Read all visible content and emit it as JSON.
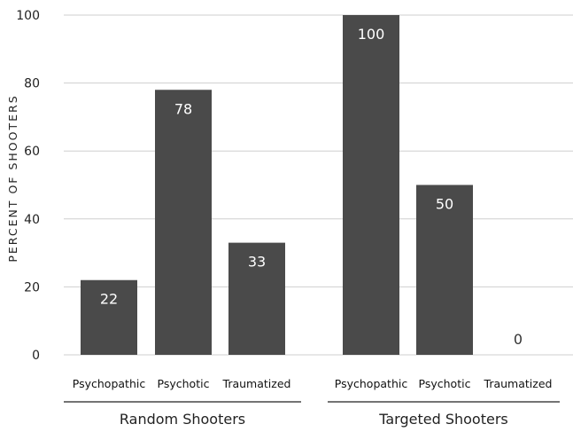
{
  "chart_data": {
    "type": "bar",
    "title": "",
    "xlabel": "",
    "ylabel": "PERCENT OF SHOOTERS",
    "ylim": [
      0,
      100
    ],
    "yticks": [
      "0",
      "20",
      "40",
      "60",
      "80",
      "100"
    ],
    "grid": true,
    "groups": [
      {
        "name": "Random Shooters",
        "categories": [
          "Psychopathic",
          "Psychotic",
          "Traumatized"
        ],
        "values": [
          22,
          78,
          33
        ]
      },
      {
        "name": "Targeted Shooters",
        "categories": [
          "Psychopathic",
          "Psychotic",
          "Traumatized"
        ],
        "values": [
          100,
          50,
          0
        ]
      }
    ],
    "colors": {
      "bar": "#4a4a4a",
      "label_on_bar": "#ffffff",
      "label_off_bar": "#333333",
      "grid": "#cfcfcf"
    }
  }
}
